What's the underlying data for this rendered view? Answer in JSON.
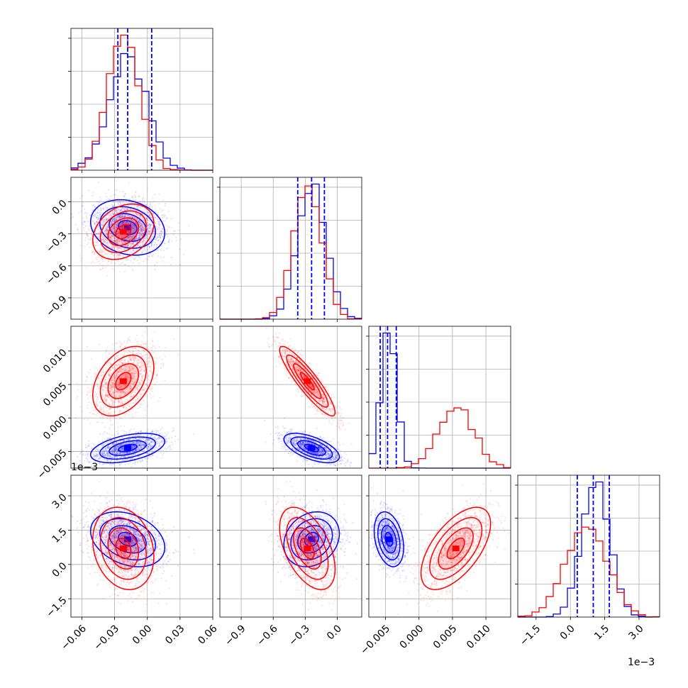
{
  "colors": {
    "series_a": "#0000ff",
    "series_b": "#ff0000",
    "grid": "#b0b0b0",
    "frame": "#000000",
    "background": "#ffffff"
  },
  "chart_data": {
    "type": "corner",
    "grid": true,
    "series": [
      {
        "color": "#0000ff",
        "mean": [
          -0.018,
          -0.24,
          -0.0045,
          0.0011
        ],
        "std": [
          0.017,
          0.13,
          0.0011,
          0.0006
        ],
        "quantiles": [
          [
            -0.027,
            -0.018,
            0.004
          ],
          [
            -0.37,
            -0.24,
            -0.12
          ],
          [
            -0.0058,
            -0.0047,
            -0.0034
          ],
          [
            0.0003,
            0.001,
            0.0017
          ]
        ]
      },
      {
        "color": "#ff0000",
        "mean": [
          -0.022,
          -0.28,
          0.0055,
          0.0007
        ],
        "std": [
          0.014,
          0.13,
          0.0026,
          0.0009
        ]
      }
    ],
    "correlations": {
      "blue": {
        "1-0": -0.2,
        "2-0": 0.45,
        "2-1": -0.6,
        "3-0": -0.3,
        "3-1": 0.2,
        "3-2": -0.3
      },
      "red": {
        "1-0": 0.3,
        "2-0": 0.4,
        "2-1": -0.9,
        "3-0": -0.2,
        "3-1": -0.5,
        "3-2": 0.6
      }
    },
    "dimensions": [
      {
        "range": [
          -0.07,
          0.06
        ],
        "ticks": [
          -0.06,
          -0.03,
          0.0,
          0.03,
          0.06
        ],
        "tick_labels": [
          "−0.06",
          "−0.03",
          "0.00",
          "0.03",
          "0.06"
        ]
      },
      {
        "range": [
          -1.1,
          0.23
        ],
        "ticks": [
          -0.9,
          -0.6,
          -0.3,
          0.0
        ],
        "tick_labels": [
          "−0.9",
          "−0.6",
          "−0.3",
          "0.0"
        ]
      },
      {
        "range": [
          -0.0075,
          0.0137
        ],
        "ticks": [
          -0.005,
          0.0,
          0.005,
          0.01
        ],
        "tick_labels": [
          "−0.005",
          "0.000",
          "0.005",
          "0.010"
        ]
      },
      {
        "range": [
          -0.0023,
          0.0039
        ],
        "ticks": [
          -0.0015,
          0.0,
          0.0015,
          0.003
        ],
        "tick_labels": [
          "−1.5",
          "0.0",
          "1.5",
          "3.0"
        ]
      }
    ],
    "offset_text": {
      "row3_y": "1e−3",
      "col3_x": "1e−3"
    }
  }
}
